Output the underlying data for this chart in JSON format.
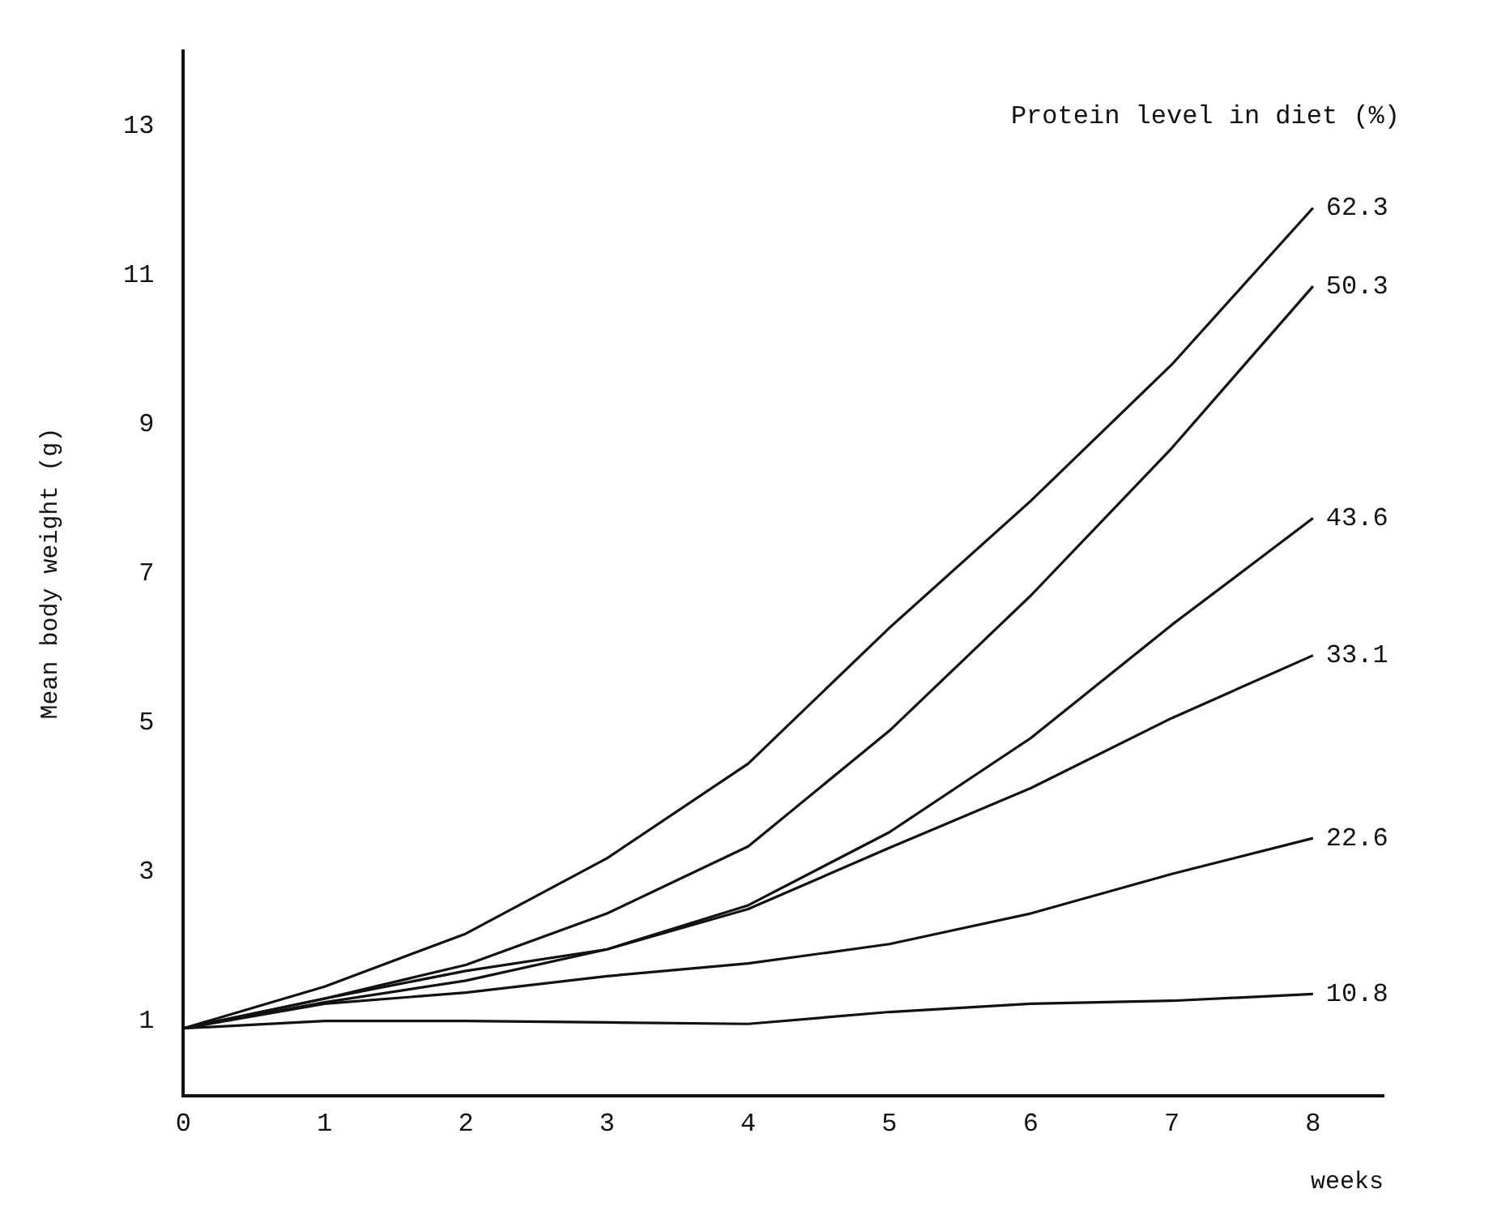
{
  "chart_data": {
    "type": "line",
    "xlabel": "weeks",
    "ylabel": "Mean body weight (g)",
    "legend_title": "Protein level in diet (%)",
    "x": [
      0,
      1,
      2,
      3,
      4,
      5,
      6,
      7,
      8
    ],
    "series": [
      {
        "name": "62.3",
        "color": "#111111",
        "values": [
          0.9,
          1.46,
          2.17,
          3.18,
          4.45,
          6.27,
          7.97,
          9.8,
          11.9
        ]
      },
      {
        "name": "50.3",
        "color": "#111111",
        "values": [
          0.9,
          1.3,
          1.75,
          2.44,
          3.34,
          4.89,
          6.7,
          8.68,
          10.85
        ]
      },
      {
        "name": "43.6",
        "color": "#111111",
        "values": [
          0.9,
          1.3,
          1.67,
          1.96,
          2.55,
          3.53,
          4.79,
          6.31,
          7.74
        ]
      },
      {
        "name": "33.1",
        "color": "#111111",
        "values": [
          0.9,
          1.25,
          1.54,
          1.96,
          2.5,
          3.32,
          4.12,
          5.06,
          5.9
        ]
      },
      {
        "name": "22.6",
        "color": "#111111",
        "values": [
          0.9,
          1.23,
          1.38,
          1.6,
          1.77,
          2.03,
          2.44,
          2.97,
          3.45
        ]
      },
      {
        "name": "10.8",
        "color": "#111111",
        "values": [
          0.9,
          1.0,
          1.0,
          0.98,
          0.96,
          1.12,
          1.23,
          1.27,
          1.36
        ]
      }
    ],
    "xlim": [
      0,
      8.5
    ],
    "ylim": [
      0,
      14
    ],
    "xticks": [
      0,
      1,
      2,
      3,
      4,
      5,
      6,
      7,
      8
    ],
    "yticks": [
      1,
      3,
      5,
      7,
      9,
      11,
      13
    ],
    "grid": false,
    "legend": false,
    "marker": "none",
    "line_style": "solid"
  }
}
